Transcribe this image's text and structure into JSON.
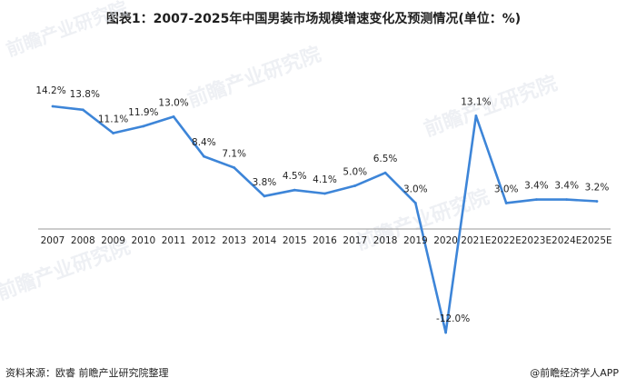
{
  "title": "图表1：2007-2025年中国男装市场规模增速变化及预测情况(单位：%)",
  "footer": {
    "source": "资料来源：欧睿 前瞻产业研究院整理",
    "brand": "@前瞻经济学人APP"
  },
  "watermark": "前瞻产业研究院",
  "colors": {
    "line": "#3d85d8",
    "axis": "#999999"
  },
  "chart_data": {
    "type": "line",
    "categories": [
      "2007",
      "2008",
      "2009",
      "2010",
      "2011",
      "2012",
      "2013",
      "2014",
      "2015",
      "2016",
      "2017",
      "2018",
      "2019",
      "2020",
      "2021E",
      "2022E",
      "2023E",
      "2024E",
      "2025E"
    ],
    "values": [
      14.2,
      13.8,
      11.1,
      11.9,
      13.0,
      8.4,
      7.1,
      3.8,
      4.5,
      4.1,
      5.0,
      6.5,
      3.0,
      -12.0,
      13.1,
      3.0,
      3.4,
      3.4,
      3.2
    ],
    "labels": [
      "14.2%",
      "13.8%",
      "11.1%",
      "11.9%",
      "13.0%",
      "8.4%",
      "7.1%",
      "3.8%",
      "4.5%",
      "4.1%",
      "5.0%",
      "6.5%",
      "3.0%",
      "-12.0%",
      "13.1%",
      "3.0%",
      "3.4%",
      "3.4%",
      "3.2%"
    ],
    "title": "图表1：2007-2025年中国男装市场规模增速变化及预测情况(单位：%)",
    "xlabel": "",
    "ylabel": "",
    "ylim": [
      -12.0,
      14.2
    ],
    "grid": false,
    "legend": "none"
  }
}
